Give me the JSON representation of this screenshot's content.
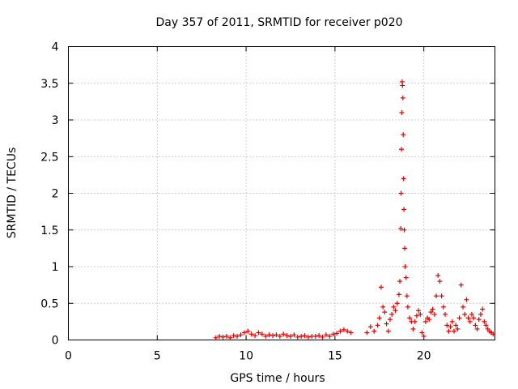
{
  "chart_data": {
    "type": "scatter",
    "title": "Day 357 of 2011, SRMTID for receiver p020",
    "xlabel": "GPS time / hours",
    "ylabel": "SRMTID / TECUs",
    "xlim": [
      0,
      24
    ],
    "ylim": [
      0,
      4
    ],
    "xticks": [
      0,
      5,
      10,
      15,
      20
    ],
    "xtick_labels": [
      "0",
      "5",
      "10",
      "15",
      "20"
    ],
    "yticks": [
      0,
      0.5,
      1,
      1.5,
      2,
      2.5,
      3,
      3.5,
      4
    ],
    "ytick_labels": [
      "0",
      "0.5",
      "1",
      "1.5",
      "2",
      "2.5",
      "3",
      "3.5",
      "4"
    ],
    "grid": true,
    "marker": "+",
    "color": "#e00000",
    "series": [
      {
        "name": "p020",
        "x": [
          8.3,
          8.5,
          8.7,
          8.9,
          9.1,
          9.3,
          9.5,
          9.7,
          9.9,
          10.1,
          10.3,
          10.5,
          10.7,
          10.9,
          11.1,
          11.3,
          11.5,
          11.7,
          11.9,
          12.1,
          12.3,
          12.5,
          12.7,
          12.9,
          13.1,
          13.3,
          13.5,
          13.7,
          13.9,
          14.1,
          14.3,
          14.5,
          14.7,
          14.9,
          15.1,
          15.3,
          15.5,
          15.7,
          15.9,
          16.8,
          17.0,
          17.2,
          17.4,
          17.5,
          17.6,
          17.7,
          17.8,
          17.9,
          18.0,
          18.1,
          18.2,
          18.3,
          18.4,
          18.5,
          18.6,
          18.65,
          18.7,
          18.72,
          18.74,
          18.76,
          18.78,
          18.8,
          18.82,
          18.84,
          18.86,
          18.88,
          18.9,
          18.92,
          18.95,
          19.0,
          19.05,
          19.1,
          19.2,
          19.3,
          19.4,
          19.5,
          19.6,
          19.7,
          19.8,
          19.9,
          20.0,
          20.1,
          20.2,
          20.3,
          20.4,
          20.5,
          20.6,
          20.7,
          20.8,
          20.9,
          21.0,
          21.1,
          21.2,
          21.3,
          21.4,
          21.5,
          21.6,
          21.7,
          21.8,
          21.9,
          22.0,
          22.1,
          22.2,
          22.3,
          22.4,
          22.5,
          22.6,
          22.7,
          22.8,
          22.9,
          23.0,
          23.1,
          23.2,
          23.3,
          23.4,
          23.5,
          23.6,
          23.7,
          23.8,
          23.9
        ],
        "y": [
          0.03,
          0.05,
          0.04,
          0.05,
          0.03,
          0.06,
          0.05,
          0.07,
          0.1,
          0.12,
          0.08,
          0.06,
          0.1,
          0.08,
          0.05,
          0.07,
          0.06,
          0.07,
          0.05,
          0.08,
          0.06,
          0.05,
          0.07,
          0.04,
          0.05,
          0.06,
          0.04,
          0.05,
          0.05,
          0.06,
          0.04,
          0.07,
          0.05,
          0.08,
          0.09,
          0.12,
          0.14,
          0.12,
          0.1,
          0.1,
          0.18,
          0.12,
          0.2,
          0.3,
          0.72,
          0.45,
          0.38,
          0.22,
          0.12,
          0.28,
          0.35,
          0.45,
          0.4,
          0.5,
          0.62,
          0.8,
          1.52,
          2.0,
          2.6,
          3.1,
          3.52,
          3.47,
          3.3,
          2.8,
          2.2,
          1.78,
          1.5,
          1.25,
          1.0,
          0.85,
          0.6,
          0.45,
          0.3,
          0.25,
          0.15,
          0.25,
          0.33,
          0.4,
          0.35,
          0.1,
          0.05,
          0.25,
          0.3,
          0.28,
          0.38,
          0.42,
          0.35,
          0.6,
          0.88,
          0.8,
          0.6,
          0.45,
          0.35,
          0.2,
          0.12,
          0.18,
          0.25,
          0.12,
          0.2,
          0.15,
          0.3,
          0.75,
          0.45,
          0.35,
          0.55,
          0.3,
          0.25,
          0.35,
          0.3,
          0.2,
          0.15,
          0.28,
          0.35,
          0.42,
          0.25,
          0.2,
          0.15,
          0.12,
          0.1,
          0.08
        ]
      }
    ]
  }
}
